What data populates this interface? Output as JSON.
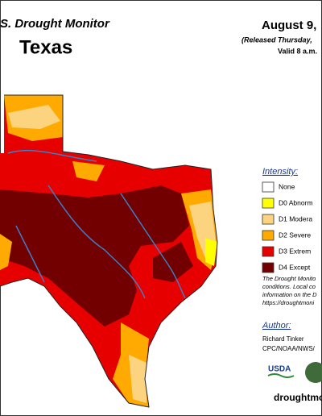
{
  "header": {
    "title": "S. Drought Monitor",
    "state": "Texas",
    "date": "August 9,",
    "released": "(Released Thursday,",
    "valid": "Valid 8 a.m."
  },
  "legend": {
    "title": "Intensity:",
    "items": [
      {
        "label": "None",
        "color": "#ffffff"
      },
      {
        "label": "D0 Abnorm",
        "color": "#ffff00"
      },
      {
        "label": "D1 Modera",
        "color": "#fcd37f"
      },
      {
        "label": "D2 Severe",
        "color": "#ffaa00"
      },
      {
        "label": "D3 Extrem",
        "color": "#e60000"
      },
      {
        "label": "D4 Except",
        "color": "#730000"
      }
    ]
  },
  "description": [
    "The Drought Monito",
    "conditions. Local co",
    "information on the D",
    "https://droughtmoni"
  ],
  "author": {
    "title": "Author:",
    "name": "Richard Tinker",
    "org": "CPC/NOAA/NWS/"
  },
  "logo": "USDA",
  "url": "droughtmo"
}
